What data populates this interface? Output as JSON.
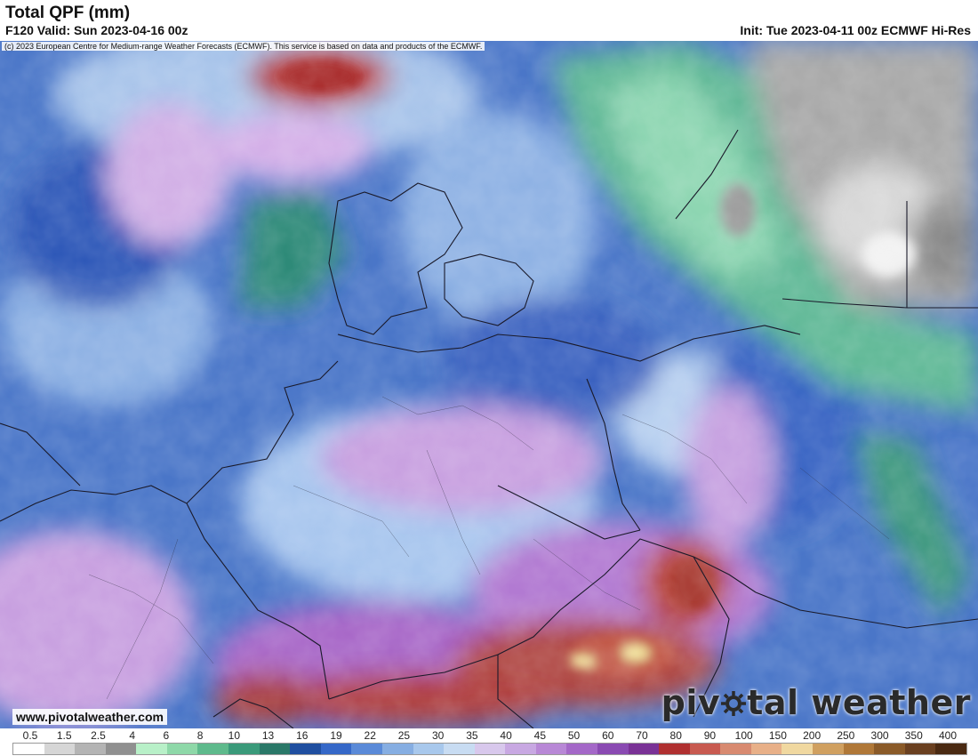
{
  "header": {
    "title": "Total QPF (mm)",
    "valid": "F120 Valid: Sun 2023-04-16 00z",
    "init": "Init: Tue 2023-04-11 00z ECMWF Hi-Res",
    "copyright": "(c) 2023 European Centre for Medium-range Weather Forecasts (ECMWF). This service is based on data and products of the ECMWF."
  },
  "footer": {
    "url": "www.pivotalweather.com",
    "brand_left": "piv",
    "brand_right": "tal weather",
    "brand_icon": "sun-gear-icon"
  },
  "legend": {
    "labels": [
      "0.5",
      "1.5",
      "2.5",
      "4",
      "6",
      "8",
      "10",
      "13",
      "16",
      "19",
      "22",
      "25",
      "30",
      "35",
      "40",
      "45",
      "50",
      "60",
      "70",
      "80",
      "90",
      "100",
      "150",
      "200",
      "250",
      "300",
      "350",
      "400"
    ],
    "colors": [
      "#ffffff",
      "#d6d6d6",
      "#b4b4b4",
      "#909090",
      "#b8f0c8",
      "#8ed8a8",
      "#5eba8c",
      "#3a9a7a",
      "#2a7868",
      "#1f4fa0",
      "#3568c8",
      "#5a8ad8",
      "#86aee2",
      "#a8c8ec",
      "#c8dcf2",
      "#d8c8ec",
      "#c8a8e2",
      "#b888d6",
      "#a468c8",
      "#8a4ab2",
      "#7a3296",
      "#b03030",
      "#c85a50",
      "#d88a70",
      "#e8b088",
      "#f0d8a0",
      "#d0a060",
      "#b07838",
      "#8a5a28",
      "#6a4020",
      "#4a2a12"
    ]
  }
}
